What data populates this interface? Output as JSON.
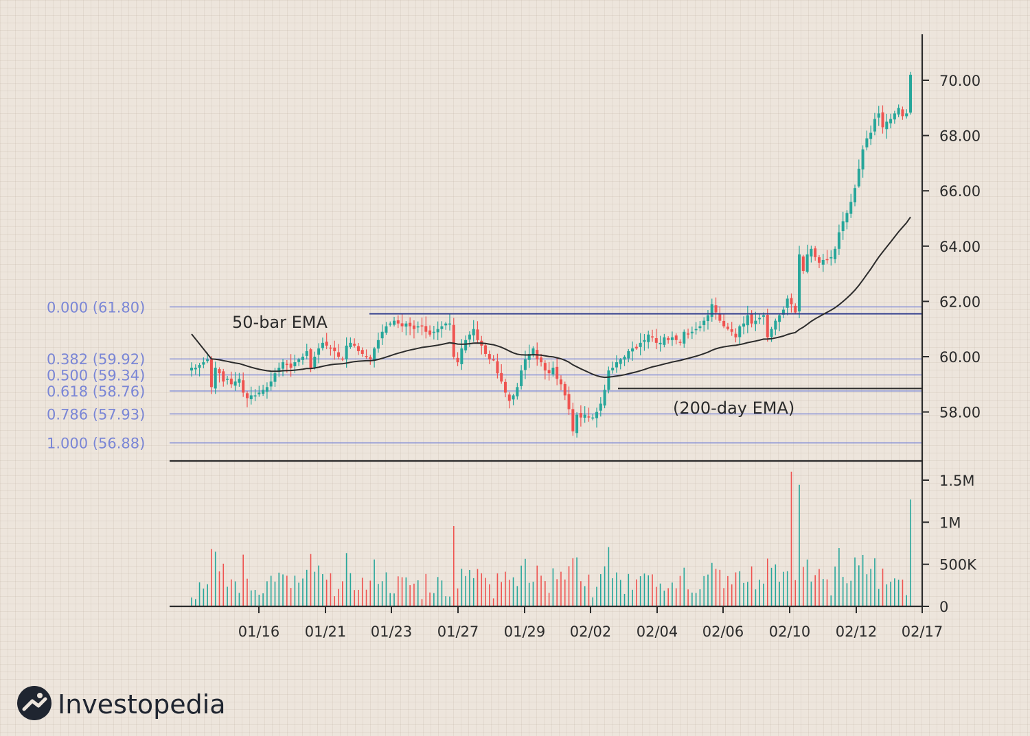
{
  "brand": {
    "name": "Investopedia"
  },
  "colors": {
    "up": "#26a69a",
    "down": "#ef5350",
    "fib": "#7a86d6",
    "ema": "#2b2b2b",
    "resistance": "#2e3a8c"
  },
  "chart_data": {
    "type": "candlestick",
    "price_axis": {
      "ticks": [
        58,
        60,
        62,
        64,
        66,
        68,
        70
      ],
      "tick_labels": [
        "58.00",
        "60.00",
        "62.00",
        "64.00",
        "66.00",
        "68.00",
        "70.00"
      ],
      "range": [
        56.2,
        71.6
      ]
    },
    "volume_axis": {
      "ticks": [
        0,
        500000,
        1000000,
        1500000
      ],
      "tick_labels": [
        "0",
        "500K",
        "1M",
        "1.5M"
      ],
      "range": [
        0,
        1650000
      ]
    },
    "x_axis": {
      "tick_labels": [
        "01/16",
        "01/21",
        "01/23",
        "01/27",
        "01/29",
        "02/02",
        "02/04",
        "02/06",
        "02/10",
        "02/12",
        "02/17"
      ]
    },
    "fib_levels": [
      {
        "label": "0.000 (61.80)",
        "value": 61.8
      },
      {
        "label": "0.382 (59.92)",
        "value": 59.92
      },
      {
        "label": "0.500 (59.34)",
        "value": 59.34
      },
      {
        "label": "0.618 (58.76)",
        "value": 58.76
      },
      {
        "label": "0.786 (57.93)",
        "value": 57.93
      },
      {
        "label": "1.000 (56.88)",
        "value": 56.88
      }
    ],
    "resistance_level": 61.55,
    "ema200_level": 58.85,
    "annotations": {
      "ema50": "50-bar EMA",
      "ema200": "(200-day EMA)"
    },
    "closes": [
      59.6,
      59.6,
      59.7,
      59.8,
      59.9,
      58.9,
      59.6,
      59.4,
      59.1,
      59.2,
      59.0,
      59.1,
      59.2,
      58.7,
      58.5,
      58.6,
      58.6,
      58.7,
      58.8,
      58.9,
      59.1,
      59.4,
      59.6,
      59.8,
      59.7,
      59.6,
      59.8,
      59.9,
      60.0,
      60.2,
      59.6,
      60.0,
      60.3,
      60.5,
      60.4,
      60.3,
      60.2,
      60.0,
      59.9,
      60.4,
      60.5,
      60.4,
      60.2,
      60.1,
      60.0,
      59.9,
      60.3,
      60.6,
      60.9,
      61.1,
      61.2,
      61.3,
      61.2,
      61.1,
      61.2,
      61.1,
      61.0,
      61.1,
      61.1,
      60.9,
      60.8,
      60.9,
      61.0,
      61.1,
      61.2,
      61.2,
      60.0,
      59.8,
      60.3,
      60.6,
      60.8,
      61.0,
      60.6,
      60.4,
      60.1,
      59.9,
      59.9,
      59.4,
      59.1,
      58.7,
      58.4,
      58.6,
      58.9,
      59.5,
      59.9,
      60.1,
      60.3,
      59.9,
      59.8,
      59.5,
      59.4,
      59.6,
      59.2,
      59.0,
      58.6,
      58.1,
      57.3,
      57.9,
      57.8,
      57.9,
      57.8,
      57.8,
      58.0,
      58.3,
      58.8,
      59.5,
      59.6,
      59.8,
      59.9,
      60.0,
      60.2,
      60.3,
      60.3,
      60.5,
      60.6,
      60.8,
      60.7,
      60.5,
      60.5,
      60.7,
      60.6,
      60.7,
      60.6,
      60.5,
      60.9,
      60.8,
      60.9,
      61.0,
      61.1,
      61.3,
      61.5,
      61.9,
      61.6,
      61.3,
      61.1,
      61.0,
      60.9,
      60.7,
      61.1,
      61.2,
      61.5,
      61.2,
      61.3,
      61.4,
      61.5,
      60.7,
      61.0,
      61.3,
      61.5,
      61.7,
      62.1,
      61.9,
      61.6,
      63.7,
      63.1,
      63.7,
      63.9,
      63.6,
      63.4,
      63.5,
      63.5,
      63.6,
      63.9,
      64.5,
      64.9,
      65.2,
      65.6,
      66.1,
      66.8,
      67.5,
      67.9,
      68.1,
      68.6,
      68.8,
      68.3,
      68.5,
      68.6,
      68.8,
      69.0,
      68.7,
      68.8,
      70.2
    ]
  }
}
